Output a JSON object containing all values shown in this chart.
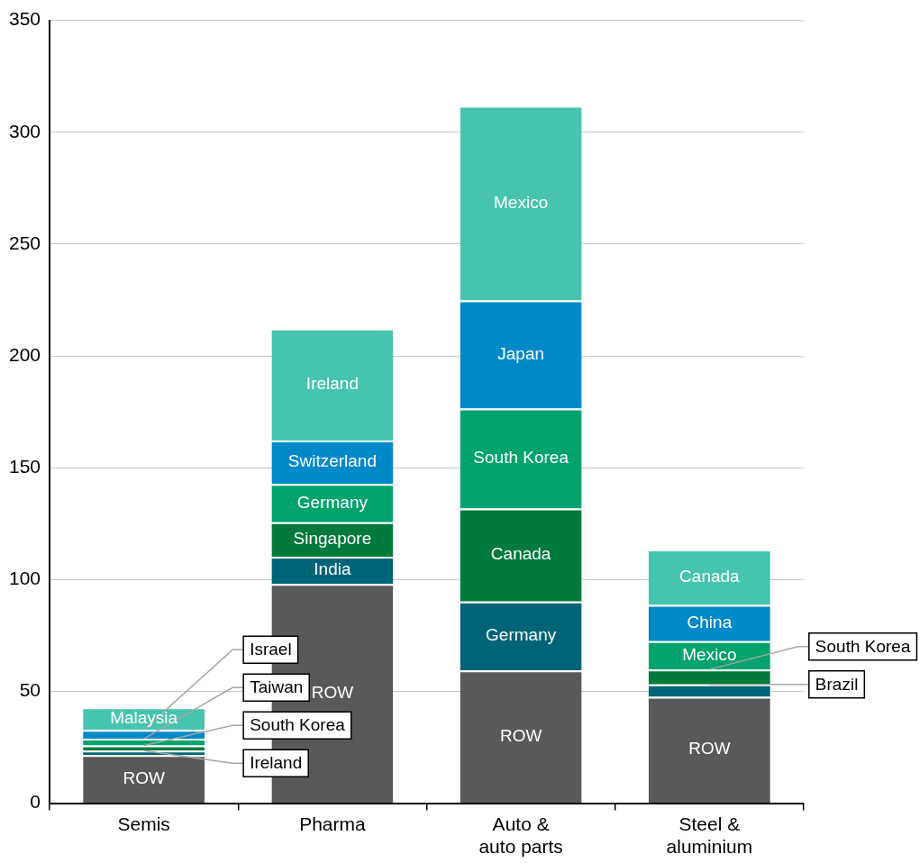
{
  "chart_data": {
    "type": "bar",
    "stacked": true,
    "categories": [
      "Semis",
      "Pharma",
      "Auto & auto parts",
      "Steel & aluminium"
    ],
    "series": [
      {
        "color": "#58595b",
        "values": [
          21.5,
          98,
          59.3,
          47.6
        ]
      },
      {
        "color": "#006478",
        "values": [
          2,
          12.2,
          30.9,
          5.5
        ]
      },
      {
        "color": "#007a3c",
        "values": [
          2.3,
          15.4,
          41.5,
          6.7
        ]
      },
      {
        "color": "#00a26e",
        "values": [
          3,
          17.1,
          44.7,
          12.6
        ]
      },
      {
        "color": "#0089c8",
        "values": [
          4,
          19.5,
          48.4,
          16.2
        ]
      },
      {
        "color": "#47c4ae",
        "values": [
          10,
          50,
          87,
          24.8
        ]
      }
    ],
    "ylim": [
      0,
      350
    ],
    "yticks": [
      0,
      50,
      100,
      150,
      200,
      250,
      300,
      350
    ],
    "grid": "y",
    "legend": false,
    "annotations": [
      "ROW",
      {
        "text": "Ireland",
        "x": "Semis",
        "y": 23.5
      },
      {
        "text": "South Korea",
        "x": "Semis",
        "y": 25.8
      },
      {
        "text": "Taiwan",
        "x": "Semis",
        "y": 28.8
      },
      {
        "text": "Israel",
        "x": "Semis",
        "y": 32.8
      },
      "Malaysia",
      "ROW",
      "India",
      "Singapore",
      "Germany",
      "Switzerland",
      "Ireland",
      "ROW",
      "Germany",
      "Canada",
      "South Korea",
      "Japan",
      "Mexico",
      "ROW",
      {
        "text": "Brazil",
        "x": "Steel & aluminium",
        "y": 53.1
      },
      {
        "text": "South Korea",
        "x": "Steel & aluminium",
        "y": 59.8
      },
      "Mexico",
      "China",
      "Canada"
    ]
  }
}
